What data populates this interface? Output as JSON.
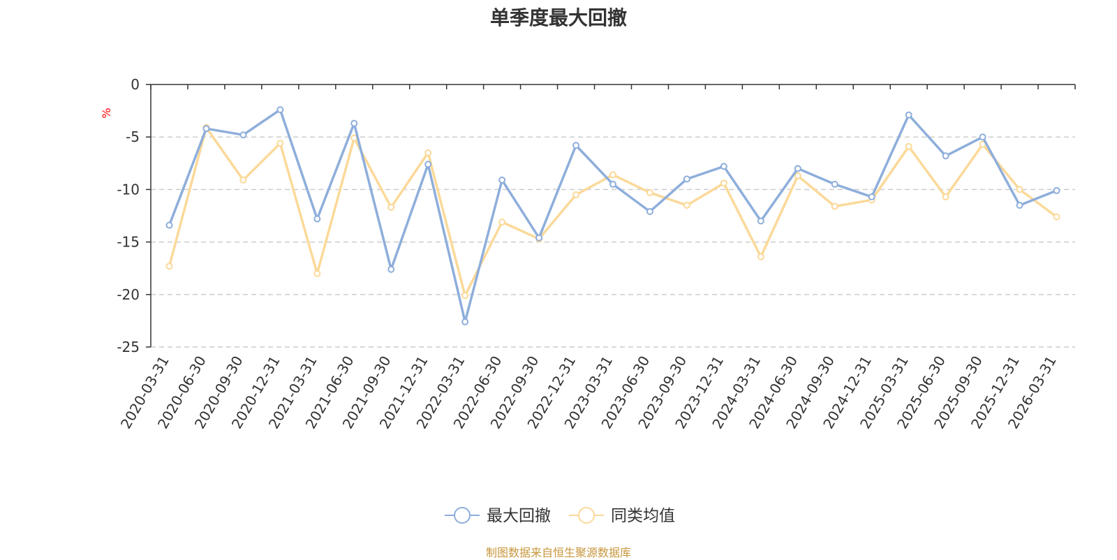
{
  "chart_data": {
    "type": "line",
    "title": "单季度最大回撤",
    "ylabel": "%",
    "ylim": [
      -25,
      0
    ],
    "yticks": [
      0,
      -5,
      -10,
      -15,
      -20,
      -25
    ],
    "grid": true,
    "legend_position": "bottom",
    "categories": [
      "2020-03-31",
      "2020-06-30",
      "2020-09-30",
      "2020-12-31",
      "2021-03-31",
      "2021-06-30",
      "2021-09-30",
      "2021-12-31",
      "2022-03-31",
      "2022-06-30",
      "2022-09-30",
      "2022-12-31",
      "2023-03-31",
      "2023-06-30",
      "2023-09-30",
      "2023-12-31",
      "2024-03-31",
      "2024-06-30",
      "2024-09-30",
      "2024-12-31",
      "2025-03-31",
      "2025-06-30",
      "2025-09-30",
      "2025-12-31",
      "2026-03-31"
    ],
    "series": [
      {
        "name": "最大回撤",
        "color": "#8eaedb",
        "values": [
          -13.4,
          -4.2,
          -4.8,
          -2.4,
          -12.8,
          -3.7,
          -17.6,
          -7.6,
          -22.6,
          -9.1,
          -14.6,
          -5.8,
          -9.5,
          -12.1,
          -9.0,
          -7.8,
          -13.0,
          -8.0,
          -9.5,
          -10.7,
          -2.9,
          -6.8,
          -5.0,
          -11.5,
          -10.1
        ]
      },
      {
        "name": "同类均值",
        "color": "#fbd999",
        "values": [
          -17.3,
          -4.1,
          -9.1,
          -5.6,
          -18.0,
          -5.1,
          -11.7,
          -6.5,
          -20.1,
          -13.1,
          -14.7,
          -10.5,
          -8.6,
          -10.3,
          -11.5,
          -9.4,
          -16.4,
          -8.7,
          -11.6,
          -11.0,
          -5.9,
          -10.7,
          -5.7,
          -10.0,
          -12.6
        ]
      }
    ],
    "source": "制图数据来自恒生聚源数据库"
  }
}
